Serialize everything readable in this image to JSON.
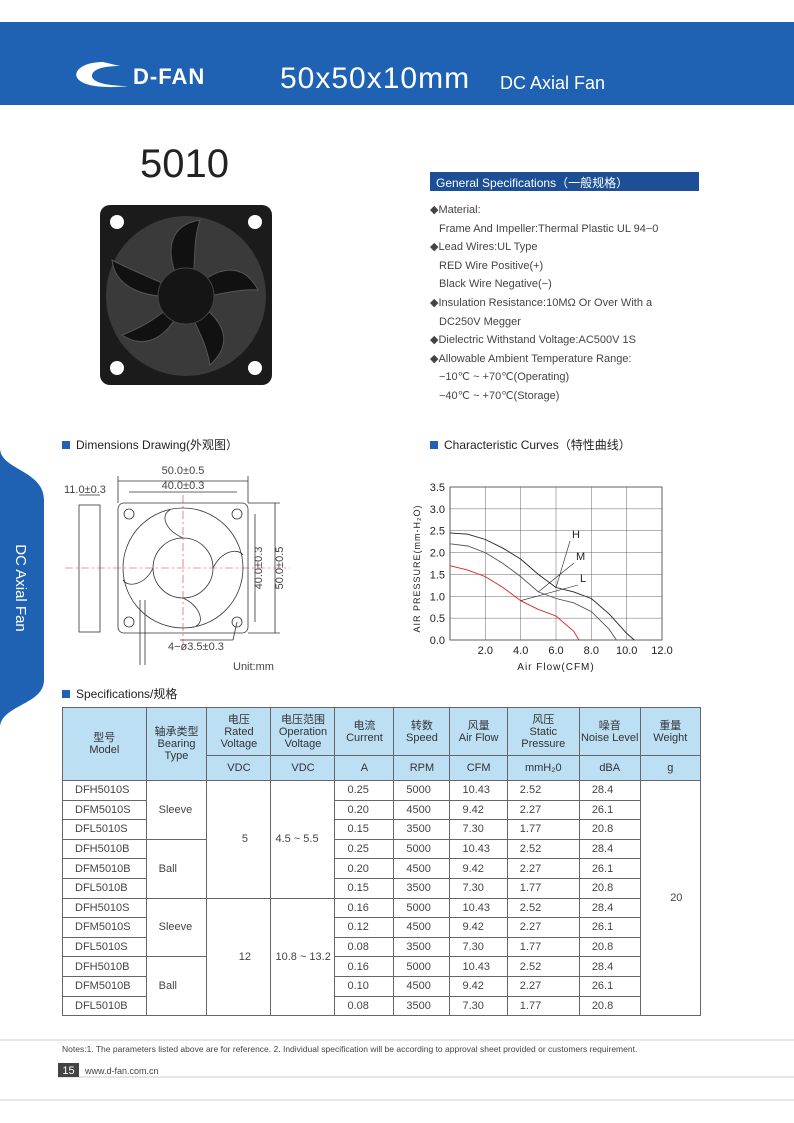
{
  "header": {
    "logo": "D-FAN",
    "title": "50x50x10mm",
    "subtitle": "DC Axial Fan"
  },
  "side_tab": "DC Axial Fan",
  "model": "5010",
  "general_specifications": {
    "heading": "General Specifications（一般规格）",
    "items": [
      {
        "text": "Material:",
        "lines": [
          "Frame And Impeller:Thermal Plastic UL 94−0"
        ]
      },
      {
        "text": "Lead Wires:UL Type",
        "lines": [
          "RED Wire Positive(+)",
          "Black Wire Negative(−)"
        ]
      },
      {
        "text": "Insulation Resistance:10MΩ  Or Over With a",
        "lines": [
          "DC250V Megger"
        ]
      },
      {
        "text": "Dielectric Withstand Voltage:AC500V 1S",
        "lines": []
      },
      {
        "text": "Allowable Ambient Temperature Range:",
        "lines": [
          "−10℃ ~ +70℃(Operating)",
          "−40℃ ~ +70℃(Storage)"
        ]
      }
    ]
  },
  "dimensions": {
    "heading": "Dimensions Drawing(外观图）",
    "labels": {
      "outer_width": "50.0±0.5",
      "hole_spacing_x": "40.0±0.3",
      "thickness": "11.0±0.3",
      "hole_spacing_y": "40.0±0.3",
      "outer_height": "50.0±0.5",
      "holes": "4−ø3.5±0.3",
      "unit": "Unit:mm"
    }
  },
  "characteristic_curves": {
    "heading": "Characteristic Curves（特性曲线）",
    "chart_data": {
      "type": "line",
      "x_label": "Air Flow(CFM)",
      "y_label": "AIR PRESSURE(mm-H₂O)",
      "xlim": [
        0,
        12
      ],
      "ylim": [
        0,
        3.5
      ],
      "xticks": [
        {
          "value": 2,
          "label": "2.0"
        },
        {
          "value": 4,
          "label": "4.0"
        },
        {
          "value": 6,
          "label": "6.0"
        },
        {
          "value": 8,
          "label": "8.0"
        },
        {
          "value": 10,
          "label": "10.0"
        },
        {
          "value": 12,
          "label": "12.0"
        }
      ],
      "yticks": [
        {
          "value": 0,
          "label": "0.0"
        },
        {
          "value": 0.5,
          "label": "0.5"
        },
        {
          "value": 1,
          "label": "1.0"
        },
        {
          "value": 1.5,
          "label": "1.5"
        },
        {
          "value": 2,
          "label": "2.0"
        },
        {
          "value": 2.5,
          "label": "2.5"
        },
        {
          "value": 3,
          "label": "3.0"
        },
        {
          "value": 3.5,
          "label": "3.5"
        }
      ],
      "grid": true,
      "series": [
        {
          "name": "H",
          "color": "#222222",
          "x": [
            0,
            1,
            2,
            3,
            4,
            5,
            6,
            7,
            8,
            9,
            10,
            10.43
          ],
          "values": [
            2.45,
            2.42,
            2.3,
            2.1,
            1.85,
            1.5,
            1.2,
            1.1,
            0.95,
            0.6,
            0.15,
            0
          ]
        },
        {
          "name": "M",
          "color": "#555555",
          "x": [
            0,
            1,
            2,
            3,
            4,
            5,
            6,
            7,
            8,
            9,
            9.42
          ],
          "values": [
            2.2,
            2.15,
            2.0,
            1.75,
            1.45,
            1.1,
            0.95,
            0.85,
            0.65,
            0.25,
            0
          ]
        },
        {
          "name": "L",
          "color": "#e02020",
          "x": [
            0,
            1,
            2,
            3,
            4,
            5,
            6,
            7,
            7.3
          ],
          "values": [
            1.7,
            1.6,
            1.45,
            1.2,
            0.9,
            0.7,
            0.55,
            0.2,
            0
          ]
        }
      ]
    }
  },
  "specifications": {
    "heading": "Specifications/规格",
    "columns": [
      {
        "zh": "型号",
        "en": "Model"
      },
      {
        "zh": "轴承类型",
        "en": "Bearing Type"
      },
      {
        "zh": "电压",
        "en": "Rated Voltage",
        "unit": "VDC"
      },
      {
        "zh": "电压范围",
        "en": "Operation Voltage",
        "unit": "VDC"
      },
      {
        "zh": "电流",
        "en": "Current",
        "unit": "A"
      },
      {
        "zh": "转数",
        "en": "Speed",
        "unit": "RPM"
      },
      {
        "zh": "风量",
        "en": "Air Flow",
        "unit": "CFM"
      },
      {
        "zh": "风压",
        "en": "Static Pressure",
        "unit": "mmH₂0"
      },
      {
        "zh": "噪音",
        "en": "Noise Level",
        "unit": "dBA"
      },
      {
        "zh": "重量",
        "en": "Weight",
        "unit": "g"
      }
    ],
    "groups": [
      {
        "rated": "5",
        "operation": "4.5 ~ 5.5",
        "bearings": [
          {
            "type": "Sleeve",
            "rows": [
              [
                "DFH5010S",
                "0.25",
                "5000",
                "10.43",
                "2.52",
                "28.4"
              ],
              [
                "DFM5010S",
                "0.20",
                "4500",
                "9.42",
                "2.27",
                "26.1"
              ],
              [
                "DFL5010S",
                "0.15",
                "3500",
                "7.30",
                "1.77",
                "20.8"
              ]
            ]
          },
          {
            "type": "Ball",
            "rows": [
              [
                "DFH5010B",
                "0.25",
                "5000",
                "10.43",
                "2.52",
                "28.4"
              ],
              [
                "DFM5010B",
                "0.20",
                "4500",
                "9.42",
                "2.27",
                "26.1"
              ],
              [
                "DFL5010B",
                "0.15",
                "3500",
                "7.30",
                "1.77",
                "20.8"
              ]
            ]
          }
        ]
      },
      {
        "rated": "12",
        "operation": "10.8 ~ 13.2",
        "bearings": [
          {
            "type": "Sleeve",
            "rows": [
              [
                "DFH5010S",
                "0.16",
                "5000",
                "10.43",
                "2.52",
                "28.4"
              ],
              [
                "DFM5010S",
                "0.12",
                "4500",
                "9.42",
                "2.27",
                "26.1"
              ],
              [
                "DFL5010S",
                "0.08",
                "3500",
                "7.30",
                "1.77",
                "20.8"
              ]
            ]
          },
          {
            "type": "Ball",
            "rows": [
              [
                "DFH5010B",
                "0.16",
                "5000",
                "10.43",
                "2.52",
                "28.4"
              ],
              [
                "DFM5010B",
                "0.10",
                "4500",
                "9.42",
                "2.27",
                "26.1"
              ],
              [
                "DFL5010B",
                "0.08",
                "3500",
                "7.30",
                "1.77",
                "20.8"
              ]
            ]
          }
        ]
      }
    ],
    "weight": "20"
  },
  "notes": "Notes:1. The parameters listed above are for reference.   2. Individual specification will be according to approval sheet provided or customers requirement.",
  "footer": {
    "page": "15",
    "url": "www.d-fan.com.cn"
  }
}
